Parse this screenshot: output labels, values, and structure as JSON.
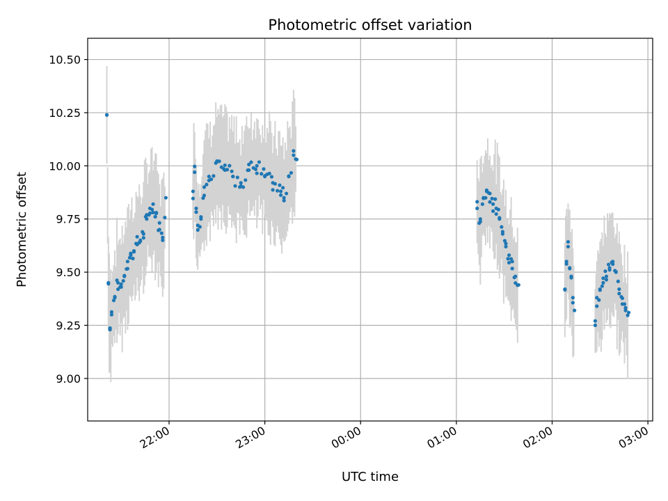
{
  "chart_data": {
    "type": "scatter",
    "title": "Photometric offset variation",
    "xlabel": "UTC time",
    "ylabel": "Photometric offset",
    "x_axis": {
      "kind": "time",
      "range": [
        "21:09",
        "03:03"
      ],
      "ticks": [
        "22:00",
        "23:00",
        "00:00",
        "01:00",
        "02:00",
        "03:00"
      ],
      "tick_label_rotation": "slanted"
    },
    "y_axis": {
      "range": [
        8.8,
        10.6
      ],
      "ticks": [
        "9.00",
        "9.25",
        "9.50",
        "9.75",
        "10.00",
        "10.25",
        "10.50"
      ]
    },
    "grid": true,
    "colors": {
      "points": "#1f77b4",
      "error_bars": "#d3d3d3"
    },
    "series": [
      {
        "marker": "dot",
        "error_bars": "grey vertical bars",
        "segments": [
          {
            "x": [
              "21:21",
              "21:22",
              "21:23",
              "21:24",
              "21:26",
              "21:28",
              "21:30",
              "21:32",
              "21:34",
              "21:36",
              "21:38",
              "21:40",
              "21:42",
              "21:44",
              "21:46",
              "21:48",
              "21:50",
              "21:52",
              "21:54",
              "21:56",
              "21:58"
            ],
            "y": [
              10.24,
              9.45,
              9.23,
              9.3,
              9.38,
              9.45,
              9.43,
              9.48,
              9.55,
              9.58,
              9.6,
              9.63,
              9.65,
              9.68,
              9.75,
              9.8,
              9.82,
              9.78,
              9.7,
              9.65,
              9.85
            ]
          },
          {
            "x": [
              "22:15",
              "22:16",
              "22:17",
              "22:18",
              "22:20",
              "22:22",
              "22:25",
              "22:30",
              "22:35",
              "22:40",
              "22:45",
              "22:50",
              "22:55",
              "23:00",
              "23:05",
              "23:10",
              "23:12",
              "23:15",
              "23:18",
              "23:20"
            ],
            "y": [
              9.88,
              9.97,
              9.8,
              9.72,
              9.75,
              9.9,
              9.95,
              10.02,
              9.98,
              9.95,
              9.92,
              9.98,
              10.0,
              9.95,
              9.92,
              9.88,
              9.85,
              9.95,
              10.05,
              10.03
            ]
          },
          {
            "x": [
              "01:13",
              "01:15",
              "01:17",
              "01:19",
              "01:21",
              "01:23",
              "01:25",
              "01:27",
              "01:29",
              "01:31",
              "01:33",
              "01:35",
              "01:37",
              "01:39"
            ],
            "y": [
              9.8,
              9.75,
              9.85,
              9.88,
              9.87,
              9.82,
              9.8,
              9.75,
              9.68,
              9.62,
              9.58,
              9.55,
              9.48,
              9.44
            ]
          },
          {
            "x": [
              "02:08",
              "02:09",
              "02:10",
              "02:11",
              "02:12",
              "02:13",
              "02:14"
            ],
            "y": [
              9.42,
              9.55,
              9.62,
              9.52,
              9.48,
              9.38,
              9.32
            ]
          },
          {
            "x": [
              "02:27",
              "02:28",
              "02:30",
              "02:32",
              "02:34",
              "02:36",
              "02:38",
              "02:40",
              "02:42",
              "02:44",
              "02:46",
              "02:48"
            ],
            "y": [
              9.25,
              9.38,
              9.42,
              9.45,
              9.48,
              9.52,
              9.55,
              9.5,
              9.42,
              9.35,
              9.32,
              9.31
            ]
          }
        ]
      }
    ]
  }
}
